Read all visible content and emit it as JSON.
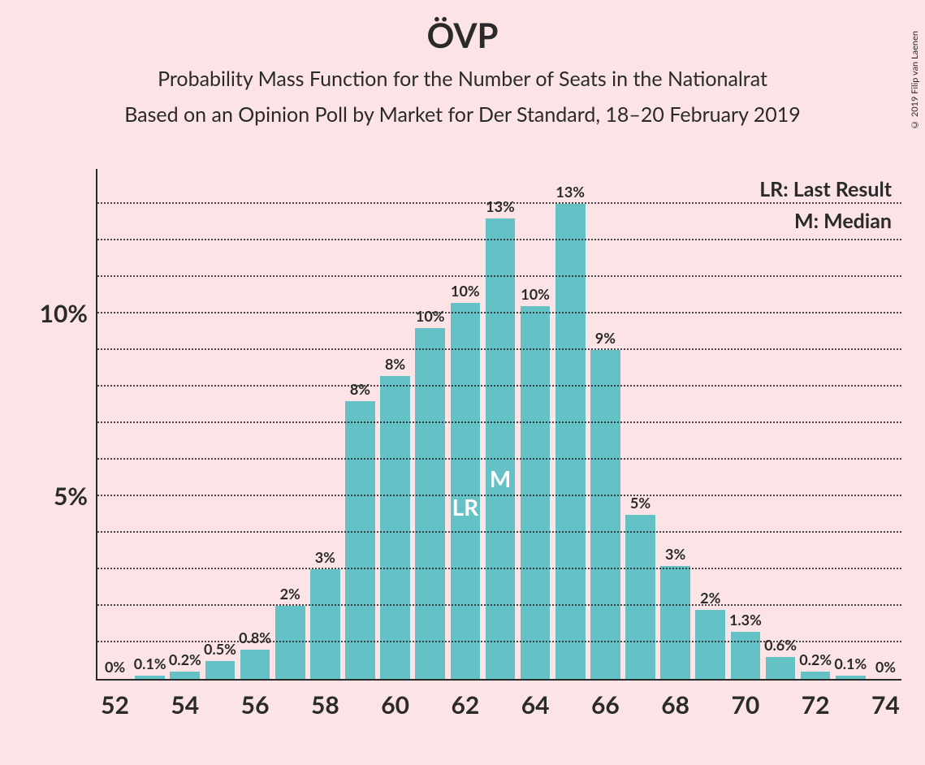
{
  "title": {
    "main": "ÖVP",
    "sub1": "Probability Mass Function for the Number of Seats in the Nationalrat",
    "sub2": "Based on an Opinion Poll by Market for Der Standard, 18–20 February 2019"
  },
  "copyright": "© 2019 Filip van Laenen",
  "legend": {
    "lr": "LR: Last Result",
    "m": "M: Median"
  },
  "chart": {
    "type": "bar",
    "background_color": "#fce4e6",
    "bar_color": "#64c2c7",
    "axis_color": "#2a2a2a",
    "grid_color": "#2a2a2a",
    "bar_width_ratio": 0.85,
    "x_range": [
      52,
      74
    ],
    "x_tick_step": 2,
    "y_max_percent": 14,
    "y_gridlines": [
      1,
      2,
      3,
      4,
      5,
      6,
      7,
      8,
      9,
      10,
      11,
      12,
      13
    ],
    "y_tick_labels": [
      {
        "value": 5,
        "text": "5%"
      },
      {
        "value": 10,
        "text": "10%"
      }
    ],
    "bars": [
      {
        "x": 52,
        "value": 0.0,
        "label": "0%"
      },
      {
        "x": 53,
        "value": 0.1,
        "label": "0.1%"
      },
      {
        "x": 54,
        "value": 0.2,
        "label": "0.2%"
      },
      {
        "x": 55,
        "value": 0.5,
        "label": "0.5%"
      },
      {
        "x": 56,
        "value": 0.8,
        "label": "0.8%"
      },
      {
        "x": 57,
        "value": 2.0,
        "label": "2%"
      },
      {
        "x": 58,
        "value": 3.0,
        "label": "3%"
      },
      {
        "x": 59,
        "value": 7.6,
        "label": "8%"
      },
      {
        "x": 60,
        "value": 8.3,
        "label": "8%"
      },
      {
        "x": 61,
        "value": 9.6,
        "label": "10%"
      },
      {
        "x": 62,
        "value": 10.3,
        "label": "10%",
        "marker": "LR"
      },
      {
        "x": 63,
        "value": 12.6,
        "label": "13%",
        "marker": "M"
      },
      {
        "x": 64,
        "value": 10.2,
        "label": "10%"
      },
      {
        "x": 65,
        "value": 13.0,
        "label": "13%"
      },
      {
        "x": 66,
        "value": 9.0,
        "label": "9%"
      },
      {
        "x": 67,
        "value": 4.5,
        "label": "5%"
      },
      {
        "x": 68,
        "value": 3.1,
        "label": "3%"
      },
      {
        "x": 69,
        "value": 1.9,
        "label": "2%"
      },
      {
        "x": 70,
        "value": 1.3,
        "label": "1.3%"
      },
      {
        "x": 71,
        "value": 0.6,
        "label": "0.6%"
      },
      {
        "x": 72,
        "value": 0.2,
        "label": "0.2%"
      },
      {
        "x": 73,
        "value": 0.1,
        "label": "0.1%"
      },
      {
        "x": 74,
        "value": 0.0,
        "label": "0%"
      }
    ]
  }
}
